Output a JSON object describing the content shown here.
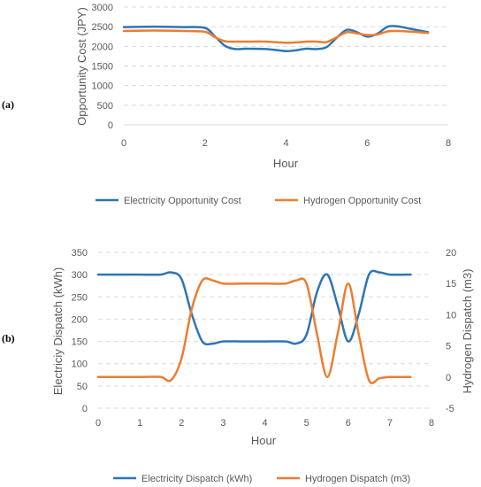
{
  "chart_data": [
    {
      "panel_label": "(a)",
      "type": "line",
      "xlabel": "Hour",
      "ylabel": "Opportunity Cost (JPY)",
      "xlim": [
        0,
        8
      ],
      "ylim": [
        0,
        3000
      ],
      "xticks": [
        0,
        2,
        4,
        6,
        8
      ],
      "yticks": [
        0,
        500,
        1000,
        1500,
        2000,
        2500,
        3000
      ],
      "grid": "horizontal dashed",
      "legend_position": "bottom",
      "colors": {
        "series1": "#2e75b6",
        "series2": "#ed7d31",
        "grid": "#d9d9d9",
        "text": "#595959"
      },
      "series": [
        {
          "name": "Electricity Opportunity Cost",
          "x": [
            0,
            0.5,
            1,
            1.5,
            2,
            2.25,
            2.5,
            2.75,
            3,
            3.5,
            4,
            4.25,
            4.5,
            4.75,
            5,
            5.25,
            5.5,
            5.75,
            6,
            6.25,
            6.5,
            6.75,
            7,
            7.5
          ],
          "y": [
            2490,
            2500,
            2500,
            2490,
            2470,
            2250,
            2010,
            1930,
            1940,
            1930,
            1880,
            1900,
            1940,
            1930,
            1980,
            2220,
            2420,
            2360,
            2250,
            2320,
            2500,
            2510,
            2460,
            2360
          ]
        },
        {
          "name": "Hydrogen Opportunity Cost",
          "x": [
            0,
            0.5,
            1,
            1.5,
            2,
            2.25,
            2.5,
            2.75,
            3,
            3.5,
            4,
            4.25,
            4.5,
            4.75,
            5,
            5.25,
            5.5,
            5.75,
            6,
            6.25,
            6.5,
            6.75,
            7,
            7.5
          ],
          "y": [
            2390,
            2400,
            2400,
            2390,
            2370,
            2230,
            2130,
            2120,
            2120,
            2120,
            2090,
            2100,
            2120,
            2120,
            2110,
            2230,
            2360,
            2330,
            2290,
            2300,
            2380,
            2390,
            2380,
            2340
          ]
        }
      ]
    },
    {
      "panel_label": "(b)",
      "type": "line",
      "xlabel": "Hour",
      "ylabel": "Electriciy Dispatch (kWh)",
      "y2label": "Hydrogen Dispatch (m3)",
      "xlim": [
        0,
        8
      ],
      "ylim": [
        0,
        350
      ],
      "y2lim": [
        -5,
        20
      ],
      "xticks": [
        0,
        1,
        2,
        3,
        4,
        5,
        6,
        7,
        8
      ],
      "yticks": [
        0,
        50,
        100,
        150,
        200,
        250,
        300,
        350
      ],
      "y2ticks": [
        -5,
        0,
        5,
        10,
        15,
        20
      ],
      "grid": "horizontal dashed",
      "legend_position": "bottom",
      "colors": {
        "series1": "#2e75b6",
        "series2": "#ed7d31",
        "grid": "#d9d9d9",
        "text": "#595959"
      },
      "series": [
        {
          "name": "Electricity Dispatch (kWh)",
          "axis": "left",
          "x": [
            0,
            0.5,
            1,
            1.5,
            1.75,
            2,
            2.25,
            2.5,
            2.75,
            3,
            3.5,
            4,
            4.5,
            4.75,
            5,
            5.25,
            5.5,
            5.75,
            6,
            6.25,
            6.5,
            6.75,
            7,
            7.5
          ],
          "y": [
            300,
            300,
            300,
            300,
            305,
            290,
            210,
            150,
            145,
            150,
            150,
            150,
            150,
            145,
            165,
            260,
            300,
            230,
            150,
            210,
            300,
            305,
            300,
            300
          ]
        },
        {
          "name": "Hydrogen Dispatch (m3)",
          "axis": "right",
          "x": [
            0,
            0.5,
            1,
            1.5,
            1.75,
            2,
            2.25,
            2.5,
            2.75,
            3,
            3.5,
            4,
            4.5,
            4.75,
            5,
            5.25,
            5.5,
            5.75,
            6,
            6.25,
            6.5,
            6.75,
            7,
            7.5
          ],
          "y": [
            0,
            0,
            0,
            0,
            -0.5,
            3,
            11,
            15.5,
            15.5,
            15,
            15,
            15,
            15,
            15.5,
            15,
            7,
            0,
            7,
            15,
            7,
            -0.5,
            -0.2,
            0,
            0
          ]
        }
      ]
    }
  ]
}
